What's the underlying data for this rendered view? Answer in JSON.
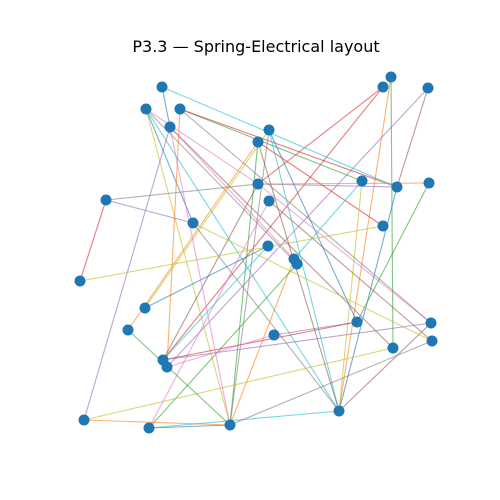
{
  "header": {
    "title": "P3.3 — Spring-Electrical layout"
  }
}
